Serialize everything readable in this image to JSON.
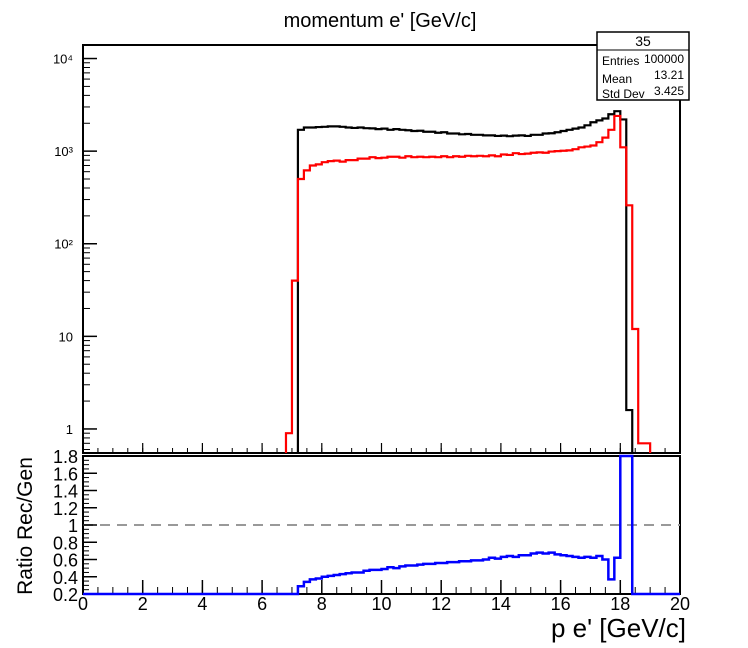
{
  "chart_data": [
    {
      "type": "histogram",
      "title": "momentum e' [GeV/c]",
      "ylog": true,
      "xlim": [
        0,
        20
      ],
      "ylim": [
        0.55,
        14000
      ],
      "y_ticks": [
        {
          "value": 1,
          "label": "1"
        },
        {
          "value": 10,
          "label": "10"
        },
        {
          "value": 100,
          "label": "10²"
        },
        {
          "value": 1000,
          "label": "10³"
        },
        {
          "value": 10000,
          "label": "10⁴"
        }
      ],
      "x_ticks": [
        0,
        2,
        4,
        6,
        8,
        10,
        12,
        14,
        16,
        18,
        20
      ],
      "bin_width": 0.2,
      "colors": {
        "generated": "#000000",
        "reconstructed": "#ff0000"
      },
      "series": [
        {
          "color_role": "generated",
          "x": [
            7.2,
            7.4,
            7.6,
            7.8,
            8.0,
            8.2,
            8.4,
            8.6,
            8.8,
            9.0,
            9.2,
            9.4,
            9.6,
            9.8,
            10.0,
            10.2,
            10.4,
            10.6,
            10.8,
            11.0,
            11.2,
            11.4,
            11.6,
            11.8,
            12.0,
            12.2,
            12.4,
            12.6,
            12.8,
            13.0,
            13.2,
            13.4,
            13.6,
            13.8,
            14.0,
            14.2,
            14.4,
            14.6,
            14.8,
            15.0,
            15.2,
            15.4,
            15.6,
            15.8,
            16.0,
            16.2,
            16.4,
            16.6,
            16.8,
            17.0,
            17.2,
            17.4,
            17.6,
            17.8,
            18.0,
            18.2
          ],
          "values": [
            1700,
            1800,
            1800,
            1820,
            1830,
            1850,
            1850,
            1830,
            1800,
            1780,
            1800,
            1770,
            1760,
            1730,
            1750,
            1700,
            1730,
            1700,
            1680,
            1650,
            1660,
            1620,
            1620,
            1580,
            1600,
            1550,
            1550,
            1520,
            1530,
            1500,
            1500,
            1480,
            1480,
            1460,
            1470,
            1450,
            1470,
            1480,
            1460,
            1500,
            1500,
            1550,
            1560,
            1600,
            1650,
            1700,
            1750,
            1800,
            1900,
            2050,
            2150,
            2250,
            2500,
            2700,
            2200,
            1.6
          ]
        },
        {
          "color_role": "reconstructed",
          "x": [
            6.8,
            7.0,
            7.2,
            7.4,
            7.6,
            7.8,
            8.0,
            8.2,
            8.4,
            8.6,
            8.8,
            9.0,
            9.2,
            9.4,
            9.6,
            9.8,
            10.0,
            10.2,
            10.4,
            10.6,
            10.8,
            11.0,
            11.2,
            11.4,
            11.6,
            11.8,
            12.0,
            12.2,
            12.4,
            12.6,
            12.8,
            13.0,
            13.2,
            13.4,
            13.6,
            13.8,
            14.0,
            14.2,
            14.4,
            14.6,
            14.8,
            15.0,
            15.2,
            15.4,
            15.6,
            15.8,
            16.0,
            16.2,
            16.4,
            16.6,
            16.8,
            17.0,
            17.2,
            17.4,
            17.6,
            17.8,
            18.0,
            18.2,
            18.4,
            18.6,
            18.8
          ],
          "values": [
            0.9,
            40,
            500,
            620,
            700,
            720,
            760,
            780,
            790,
            770,
            800,
            800,
            830,
            830,
            860,
            840,
            850,
            870,
            870,
            850,
            880,
            860,
            870,
            860,
            870,
            860,
            880,
            860,
            880,
            870,
            890,
            880,
            890,
            880,
            900,
            880,
            920,
            910,
            950,
            930,
            940,
            960,
            970,
            960,
            990,
            1000,
            1010,
            1020,
            1050,
            1100,
            1120,
            1150,
            1250,
            1400,
            1700,
            2400,
            1100,
            260,
            12,
            0.7,
            0.7
          ]
        }
      ]
    },
    {
      "type": "histogram",
      "ylabel": "Ratio Rec/Gen",
      "xlabel": "p e' [GeV/c]",
      "xlim": [
        0,
        20
      ],
      "ylim": [
        0.2,
        1.8
      ],
      "reference_line": 1.0,
      "y_ticks": [
        {
          "value": 0.2,
          "label": "0.2"
        },
        {
          "value": 0.4,
          "label": "0.4"
        },
        {
          "value": 0.6,
          "label": "0.6"
        },
        {
          "value": 0.8,
          "label": "0.8"
        },
        {
          "value": 1.0,
          "label": "1"
        },
        {
          "value": 1.2,
          "label": "1.2"
        },
        {
          "value": 1.4,
          "label": "1.4"
        },
        {
          "value": 1.6,
          "label": "1.6"
        },
        {
          "value": 1.8,
          "label": "1.8"
        }
      ],
      "x_ticks": [
        {
          "value": 0,
          "label": "0"
        },
        {
          "value": 2,
          "label": "2"
        },
        {
          "value": 4,
          "label": "4"
        },
        {
          "value": 6,
          "label": "6"
        },
        {
          "value": 8,
          "label": "8"
        },
        {
          "value": 10,
          "label": "10"
        },
        {
          "value": 12,
          "label": "12"
        },
        {
          "value": 14,
          "label": "14"
        },
        {
          "value": 16,
          "label": "16"
        },
        {
          "value": 18,
          "label": "18"
        },
        {
          "value": 20,
          "label": "20"
        }
      ],
      "bin_width": 0.2,
      "color": "#0000ff",
      "series": [
        {
          "x": [
            7.2,
            7.4,
            7.6,
            7.8,
            8.0,
            8.2,
            8.4,
            8.6,
            8.8,
            9.0,
            9.2,
            9.4,
            9.6,
            9.8,
            10.0,
            10.2,
            10.4,
            10.6,
            10.8,
            11.0,
            11.2,
            11.4,
            11.6,
            11.8,
            12.0,
            12.2,
            12.4,
            12.6,
            12.8,
            13.0,
            13.2,
            13.4,
            13.6,
            13.8,
            14.0,
            14.2,
            14.4,
            14.6,
            14.8,
            15.0,
            15.2,
            15.4,
            15.6,
            15.8,
            16.0,
            16.2,
            16.4,
            16.6,
            16.8,
            17.0,
            17.2,
            17.4,
            17.6,
            17.8,
            18.0,
            18.2
          ],
          "values": [
            0.29,
            0.34,
            0.37,
            0.38,
            0.4,
            0.41,
            0.42,
            0.43,
            0.44,
            0.45,
            0.45,
            0.47,
            0.48,
            0.48,
            0.49,
            0.51,
            0.5,
            0.52,
            0.53,
            0.53,
            0.54,
            0.55,
            0.55,
            0.56,
            0.56,
            0.57,
            0.57,
            0.58,
            0.58,
            0.59,
            0.59,
            0.6,
            0.62,
            0.61,
            0.63,
            0.64,
            0.63,
            0.65,
            0.65,
            0.67,
            0.68,
            0.67,
            0.68,
            0.66,
            0.65,
            0.64,
            0.63,
            0.62,
            0.63,
            0.62,
            0.64,
            0.6,
            0.37,
            0.62,
            1.8,
            1.8
          ]
        }
      ]
    }
  ],
  "stats_box": {
    "title": "35",
    "rows": [
      {
        "label": "Entries",
        "value": "100000"
      },
      {
        "label": "Mean",
        "value": "13.21"
      },
      {
        "label": "Std Dev",
        "value": "3.425"
      }
    ]
  }
}
